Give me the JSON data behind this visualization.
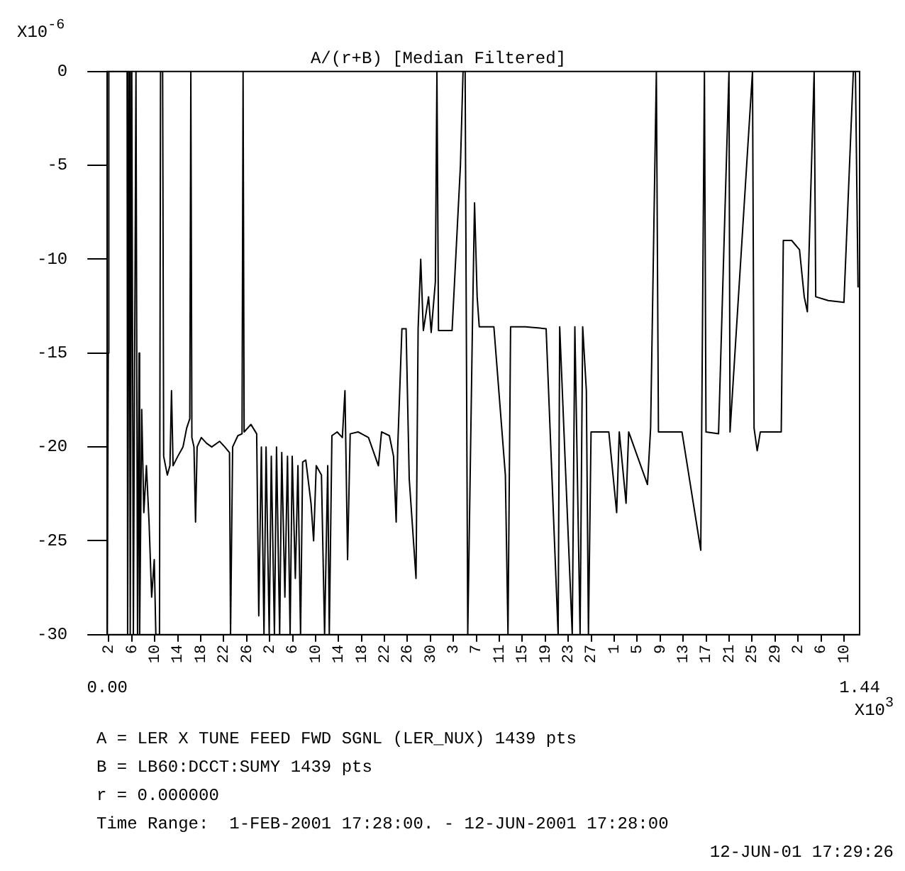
{
  "chart_data": {
    "type": "line",
    "title": "A/(r+B) [Median Filtered]",
    "ylabel": "X10$^{-6}$",
    "xlabel": "X10$^{3}$",
    "x": [
      0,
      0.002,
      0.003,
      0.038,
      0.039,
      0.042,
      0.044,
      0.047,
      0.05,
      0.055,
      0.058,
      0.061,
      0.062,
      0.066,
      0.07,
      0.075,
      0.08,
      0.085,
      0.09,
      0.093,
      0.1,
      0.102,
      0.106,
      0.108,
      0.115,
      0.12,
      0.123,
      0.126,
      0.135,
      0.145,
      0.152,
      0.158,
      0.16,
      0.162,
      0.166,
      0.169,
      0.172,
      0.18,
      0.19,
      0.2,
      0.215,
      0.225,
      0.234,
      0.236,
      0.24,
      0.25,
      0.258,
      0.26,
      0.262,
      0.275,
      0.286,
      0.29,
      0.295,
      0.3,
      0.304,
      0.31,
      0.314,
      0.32,
      0.324,
      0.33,
      0.334,
      0.34,
      0.345,
      0.35,
      0.354,
      0.36,
      0.365,
      0.37,
      0.374,
      0.38,
      0.39,
      0.395,
      0.4,
      0.41,
      0.416,
      0.422,
      0.425,
      0.43,
      0.44,
      0.45,
      0.455,
      0.46,
      0.465,
      0.48,
      0.5,
      0.519,
      0.525,
      0.54,
      0.548,
      0.553,
      0.556,
      0.564,
      0.572,
      0.578,
      0.591,
      0.595,
      0.6,
      0.605,
      0.615,
      0.62,
      0.628,
      0.631,
      0.634,
      0.66,
      0.676,
      0.681,
      0.685,
      0.69,
      0.699,
      0.703,
      0.708,
      0.712,
      0.74,
      0.762,
      0.767,
      0.772,
      0.8,
      0.84,
      0.863,
      0.866,
      0.89,
      0.895,
      0.905,
      0.91,
      0.917,
      0.921,
      0.926,
      0.96,
      0.975,
      0.98,
      0.993,
      0.998,
      1.034,
      1.04,
      1.051,
      1.055,
      1.1,
      1.136,
      1.143,
      1.146,
      1.17,
      1.19,
      1.192,
      1.235,
      1.238,
      1.244,
      1.25,
      1.29,
      1.294,
      1.31,
      1.325,
      1.334,
      1.34,
      1.353,
      1.356,
      1.38,
      1.41,
      1.428,
      1.432,
      1.437
    ],
    "series": [
      {
        "color": "#000000",
        "values": [
          -30,
          -15,
          0,
          0,
          -30,
          0,
          -30,
          0,
          -30,
          0,
          -30,
          -15,
          -30,
          -18,
          -23.5,
          -21,
          -24,
          -28,
          -26,
          -30,
          -30,
          0,
          0,
          -20.5,
          -21.5,
          -21,
          -17,
          -21,
          -20.5,
          -20,
          -19,
          -18.5,
          0,
          -19.5,
          -20,
          -24,
          -20,
          -19.5,
          -19.8,
          -20,
          -19.7,
          -20,
          -20.3,
          -30,
          -20,
          -19.4,
          -19.3,
          0,
          -19.2,
          -18.8,
          -19.3,
          -29,
          -20,
          -30,
          -20,
          -30,
          -20.5,
          -30,
          -20,
          -30,
          -20.3,
          -28,
          -20.5,
          -30,
          -20.5,
          -27,
          -21,
          -30,
          -20.8,
          -20.7,
          -23,
          -25,
          -21,
          -21.5,
          -30,
          -21,
          -30,
          -19.4,
          -19.2,
          -19.5,
          -17,
          -26,
          -19.3,
          -19.2,
          -19.5,
          -21,
          -19.2,
          -19.4,
          -20.5,
          -24,
          -20,
          -13.7,
          -13.7,
          -21.7,
          -27,
          -13.7,
          -10,
          -13.8,
          -12,
          -13.9,
          -11.2,
          0,
          -13.8,
          -13.8,
          -5,
          0,
          0,
          -30,
          -13.5,
          -7,
          -12,
          -13.6,
          -13.6,
          -21.5,
          -30,
          -13.6,
          -13.6,
          -13.7,
          -30,
          -13.6,
          -30,
          -13.6,
          -30,
          -13.6,
          -17,
          -30,
          -19.2,
          -19.2,
          -23.5,
          -19.2,
          -23,
          -19.2,
          -22,
          -19,
          0,
          -19.2,
          -19.2,
          -25.5,
          0,
          -19.2,
          -19.3,
          0,
          -19.2,
          0,
          -19,
          -20.2,
          -19.2,
          -19.2,
          -9,
          -9,
          -9.5,
          -12,
          -12.8,
          0,
          -12,
          -12.2,
          -12.3,
          0,
          0,
          -11.5
        ]
      }
    ],
    "xlim": [
      0,
      1.44
    ],
    "xticks": [
      {
        "value": 0,
        "label": "0.00"
      },
      1.44
    ],
    "x2lim": [
      "2001-02-01T17:28",
      "2001-06-12T17:28"
    ],
    "x2ticks": [
      {
        "value": "2001-02-02",
        "label": "2"
      },
      {
        "value": "2001-02-06",
        "label": "6"
      },
      {
        "value": "2001-02-10",
        "label": "10"
      },
      {
        "value": "2001-02-14",
        "label": "14"
      },
      {
        "value": "2001-02-18",
        "label": "18"
      },
      {
        "value": "2001-02-22",
        "label": "22"
      },
      {
        "value": "2001-02-26",
        "label": "26"
      },
      {
        "value": "2001-03-02",
        "label": "2"
      },
      {
        "value": "2001-03-06",
        "label": "6"
      },
      {
        "value": "2001-03-10",
        "label": "10"
      },
      {
        "value": "2001-03-14",
        "label": "14"
      },
      {
        "value": "2001-03-18",
        "label": "18"
      },
      {
        "value": "2001-03-22",
        "label": "22"
      },
      {
        "value": "2001-03-26",
        "label": "26"
      },
      {
        "value": "2001-03-30",
        "label": "30"
      },
      {
        "value": "2001-04-03",
        "label": "3"
      },
      {
        "value": "2001-04-07",
        "label": "7"
      },
      {
        "value": "2001-04-11",
        "label": "11"
      },
      {
        "value": "2001-04-15",
        "label": "15"
      },
      {
        "value": "2001-04-19",
        "label": "19"
      },
      {
        "value": "2001-04-23",
        "label": "23"
      },
      {
        "value": "2001-04-27",
        "label": "27"
      },
      {
        "value": "2001-05-01",
        "label": "1"
      },
      {
        "value": "2001-05-05",
        "label": "5"
      },
      {
        "value": "2001-05-09",
        "label": "9"
      },
      {
        "value": "2001-05-13",
        "label": "13"
      },
      {
        "value": "2001-05-17",
        "label": "17"
      },
      {
        "value": "2001-05-21",
        "label": "21"
      },
      {
        "value": "2001-05-25",
        "label": "25"
      },
      {
        "value": "2001-05-29",
        "label": "29"
      },
      {
        "value": "2001-06-02",
        "label": "2"
      },
      {
        "value": "2001-06-06",
        "label": "6"
      },
      {
        "value": "2001-06-10",
        "label": "10"
      }
    ],
    "ylim": [
      -30,
      0
    ],
    "yticks": [
      -30,
      -25,
      -20,
      -15,
      -10,
      -5,
      0
    ],
    "grid": false,
    "legend": false,
    "annotations": [
      "A = LER X TUNE FEED FWD SGNL (LER_NUX) 1439 pts",
      "B = LB60:DCCT:SUMY 1439 pts",
      "r = 0.000000",
      "Time Range:  1-FEB-2001 17:28:00. - 12-JUN-2001 17:28:00",
      "12-JUN-01 17:29:26"
    ]
  }
}
